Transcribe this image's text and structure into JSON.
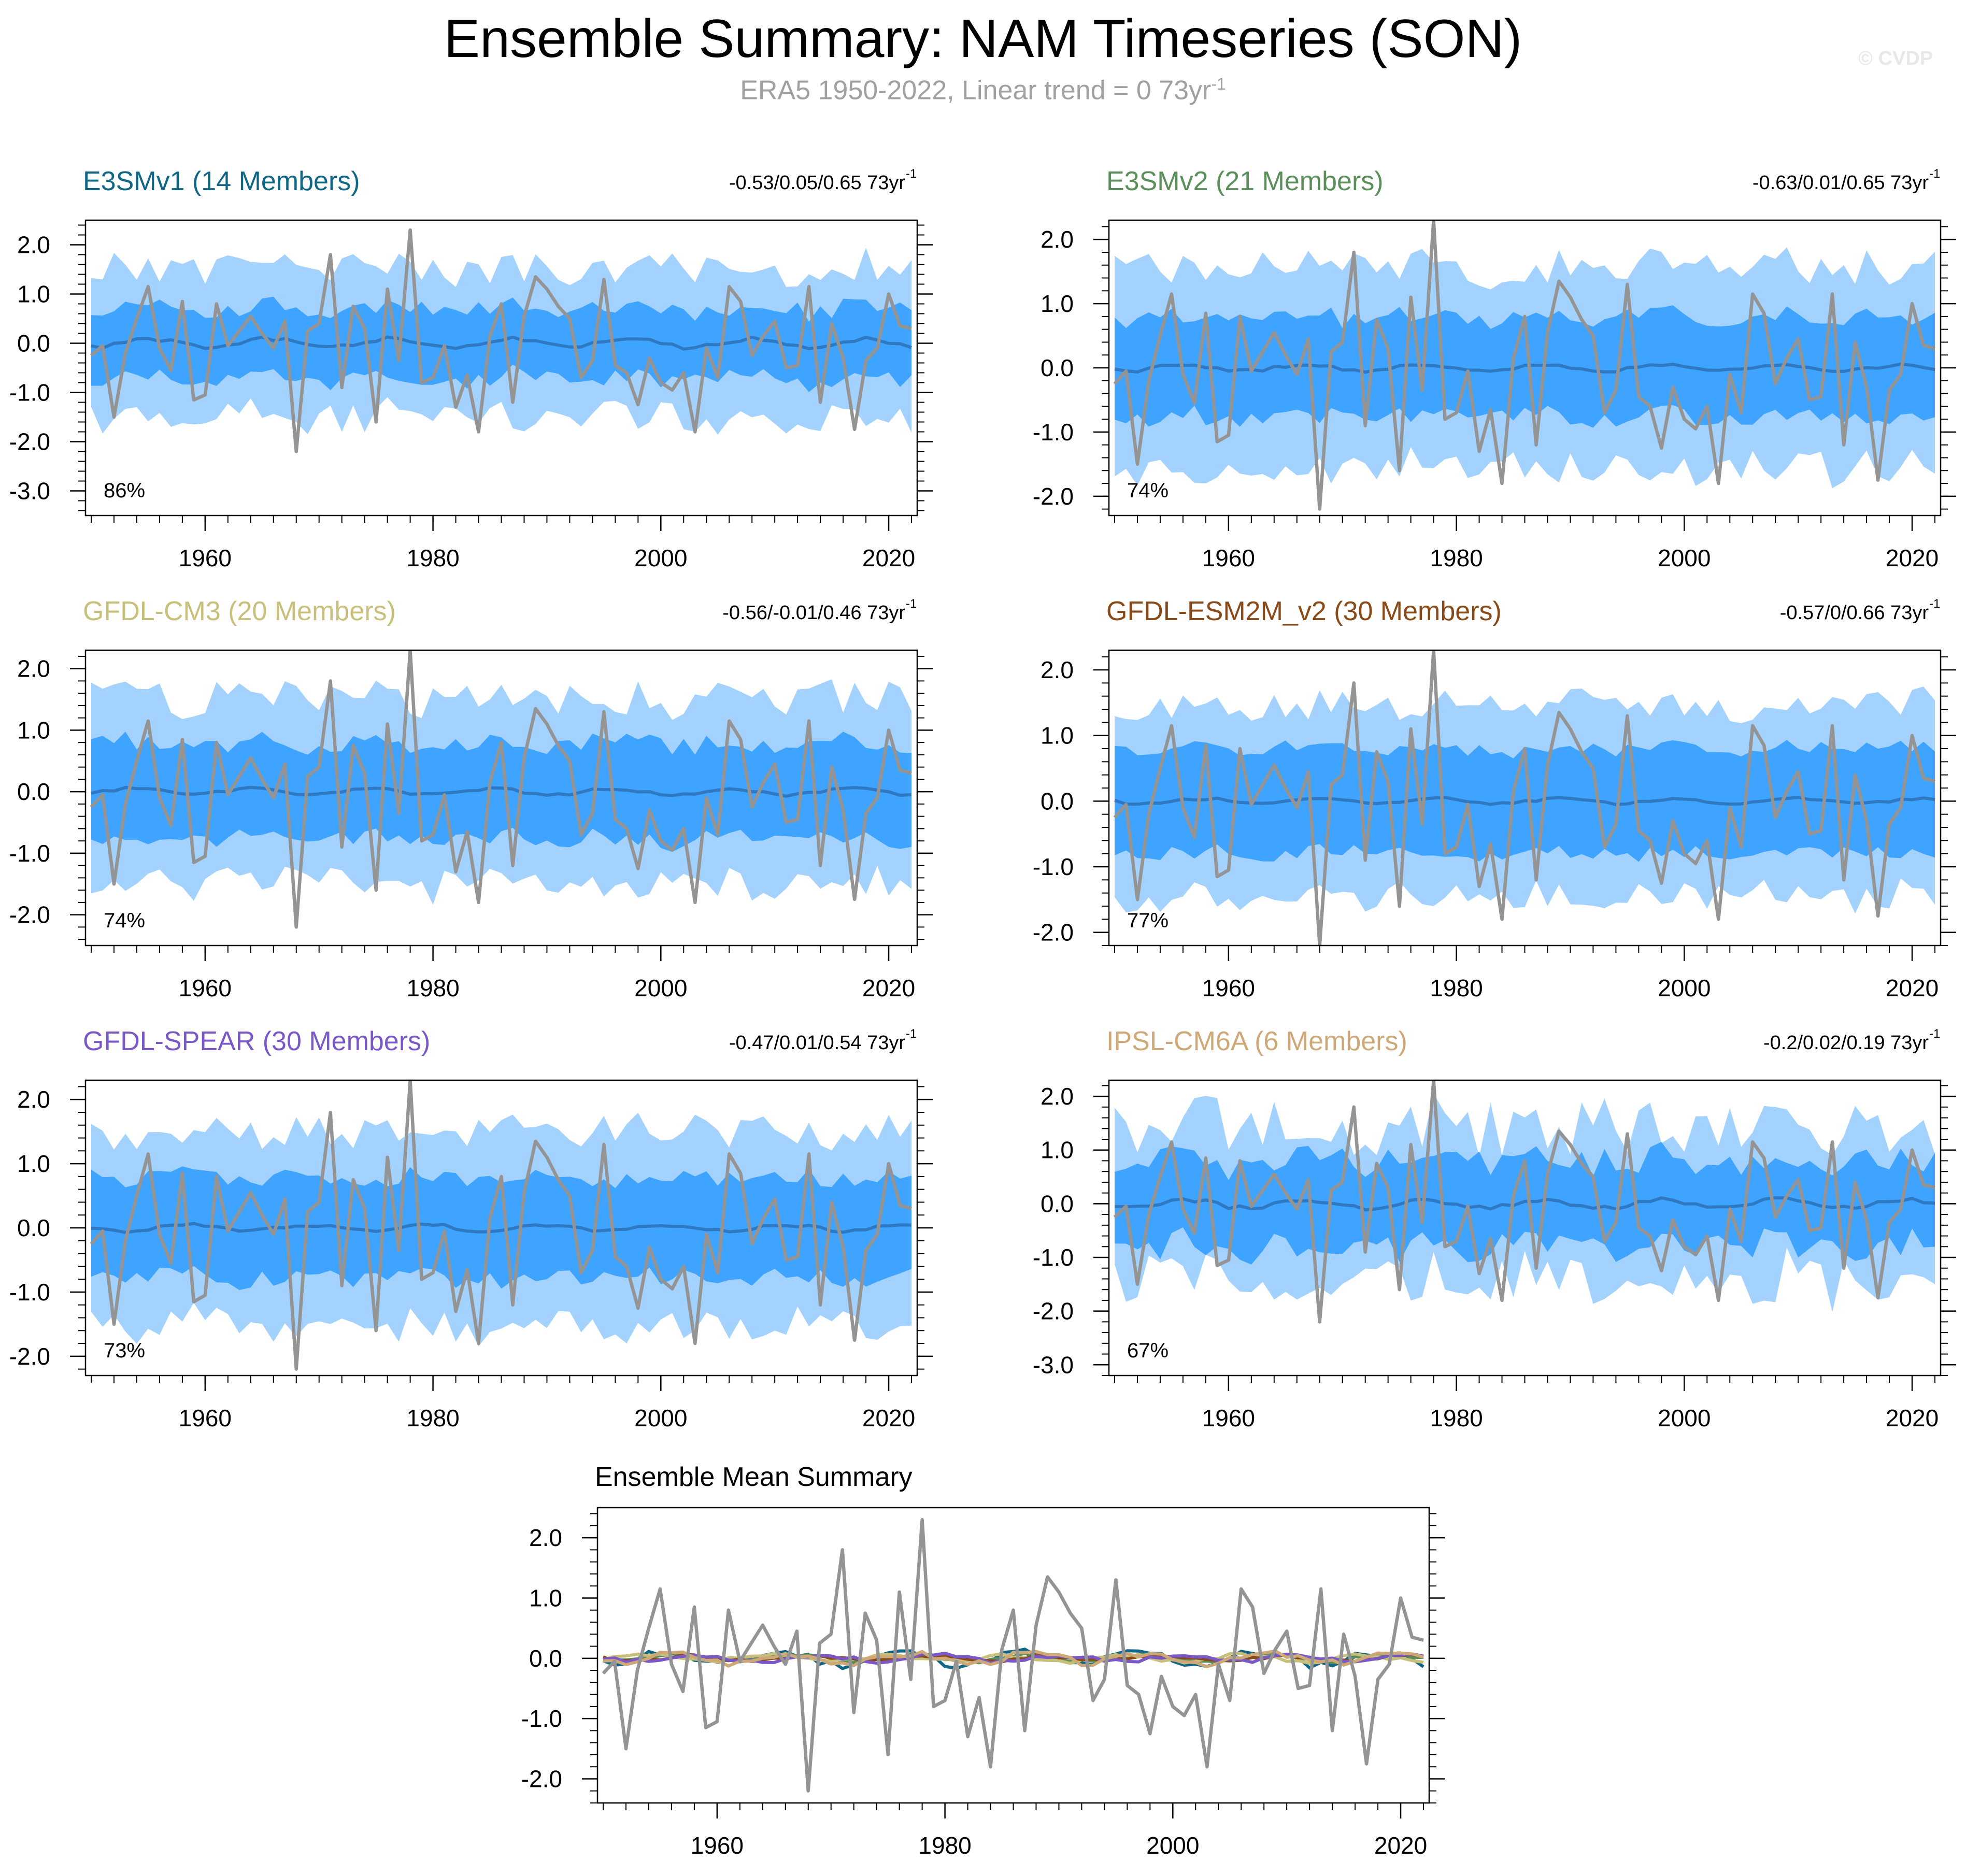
{
  "title": "Ensemble Summary: NAM Timeseries (SON)",
  "subtitle": {
    "text": "ERA5 1950-2022, Linear trend = 0 73yr",
    "sup": "-1"
  },
  "credit": "© CVDP",
  "colors": {
    "outer_band": "#a3d2ff",
    "inner_band": "#3fa4ff",
    "ens_mean_line": "#2f78c2",
    "obs_line": "#949494",
    "axis": "#000000"
  },
  "obs_label": "ERA5",
  "chart_data": [
    {
      "type": "area",
      "panel": "E3SMv1",
      "title": "E3SMv1 (14 Members)",
      "title_color": "#0f6686",
      "trend_text": "-0.53/0.05/0.65 73yr",
      "trend_sup": "-1",
      "pct_label": "86%",
      "ylim": [
        -3.5,
        2.5
      ],
      "yticks": [
        -3.0,
        -2.0,
        -1.0,
        0.0,
        1.0,
        2.0
      ],
      "ytick_labels": [
        "-3.0",
        "-2.0",
        "-1.0",
        "0.0",
        "1.0",
        "2.0"
      ],
      "xlim": [
        1949.5,
        2022.5
      ],
      "xticks": [
        1960,
        1980,
        2000,
        2020
      ],
      "outer_amp": 1.45,
      "inner_amp": 0.72,
      "noise_amp": 0.35,
      "mean_amp": 0.09,
      "seed": 11
    },
    {
      "type": "area",
      "panel": "E3SMv2",
      "title": "E3SMv2 (21 Members)",
      "title_color": "#5a8f5a",
      "trend_text": "-0.63/0.01/0.65 73yr",
      "trend_sup": "-1",
      "pct_label": "74%",
      "ylim": [
        -2.3,
        2.3
      ],
      "yticks": [
        -2.0,
        -1.0,
        0.0,
        1.0,
        2.0
      ],
      "ytick_labels": [
        "-2.0",
        "-1.0",
        "0.0",
        "1.0",
        "2.0"
      ],
      "xlim": [
        1949.5,
        2022.5
      ],
      "xticks": [
        1960,
        1980,
        2000,
        2020
      ],
      "outer_amp": 1.5,
      "inner_amp": 0.78,
      "noise_amp": 0.3,
      "mean_amp": 0.05,
      "seed": 23
    },
    {
      "type": "area",
      "panel": "GFDL-CM3",
      "title": "GFDL-CM3 (20 Members)",
      "title_color": "#c8c07a",
      "trend_text": "-0.56/-0.01/0.46 73yr",
      "trend_sup": "-1",
      "pct_label": "74%",
      "ylim": [
        -2.5,
        2.3
      ],
      "yticks": [
        -2.0,
        -1.0,
        0.0,
        1.0,
        2.0
      ],
      "ytick_labels": [
        "-2.0",
        "-1.0",
        "0.0",
        "1.0",
        "2.0"
      ],
      "xlim": [
        1949.5,
        2022.5
      ],
      "xticks": [
        1960,
        1980,
        2000,
        2020
      ],
      "outer_amp": 1.45,
      "inner_amp": 0.78,
      "noise_amp": 0.3,
      "mean_amp": 0.05,
      "seed": 37
    },
    {
      "type": "area",
      "panel": "GFDL-ESM2M_v2",
      "title": "GFDL-ESM2M_v2 (30 Members)",
      "title_color": "#8a4a18",
      "trend_text": "-0.57/0/0.66 73yr",
      "trend_sup": "-1",
      "pct_label": "77%",
      "ylim": [
        -2.2,
        2.3
      ],
      "yticks": [
        -2.0,
        -1.0,
        0.0,
        1.0,
        2.0
      ],
      "ytick_labels": [
        "-2.0",
        "-1.0",
        "0.0",
        "1.0",
        "2.0"
      ],
      "xlim": [
        1949.5,
        2022.5
      ],
      "xticks": [
        1960,
        1980,
        2000,
        2020
      ],
      "outer_amp": 1.4,
      "inner_amp": 0.8,
      "noise_amp": 0.25,
      "mean_amp": 0.04,
      "seed": 41
    },
    {
      "type": "area",
      "panel": "GFDL-SPEAR",
      "title": "GFDL-SPEAR (30 Members)",
      "title_color": "#7b58c8",
      "trend_text": "-0.47/0.01/0.54 73yr",
      "trend_sup": "-1",
      "pct_label": "73%",
      "ylim": [
        -2.3,
        2.3
      ],
      "yticks": [
        -2.0,
        -1.0,
        0.0,
        1.0,
        2.0
      ],
      "ytick_labels": [
        "-2.0",
        "-1.0",
        "0.0",
        "1.0",
        "2.0"
      ],
      "xlim": [
        1949.5,
        2022.5
      ],
      "xticks": [
        1960,
        1980,
        2000,
        2020
      ],
      "outer_amp": 1.45,
      "inner_amp": 0.78,
      "noise_amp": 0.28,
      "mean_amp": 0.05,
      "seed": 53
    },
    {
      "type": "area",
      "panel": "IPSL-CM6A",
      "title": "IPSL-CM6A (6 Members)",
      "title_color": "#cfa878",
      "trend_text": "-0.2/0.02/0.19 73yr",
      "trend_sup": "-1",
      "pct_label": "67%",
      "ylim": [
        -3.2,
        2.3
      ],
      "yticks": [
        -3.0,
        -2.0,
        -1.0,
        0.0,
        1.0,
        2.0
      ],
      "ytick_labels": [
        "-3.0",
        "-2.0",
        "-1.0",
        "0.0",
        "1.0",
        "2.0"
      ],
      "xlim": [
        1949.5,
        2022.5
      ],
      "xticks": [
        1960,
        1980,
        2000,
        2020
      ],
      "outer_amp": 1.35,
      "inner_amp": 0.8,
      "noise_amp": 0.55,
      "mean_amp": 0.08,
      "seed": 67
    },
    {
      "type": "line",
      "panel": "Ensemble Mean Summary",
      "title": "Ensemble Mean Summary",
      "title_color": "#000000",
      "ylim": [
        -2.4,
        2.5
      ],
      "yticks": [
        -2.0,
        -1.0,
        0.0,
        1.0,
        2.0
      ],
      "ytick_labels": [
        "-2.0",
        "-1.0",
        "0.0",
        "1.0",
        "2.0"
      ],
      "xlim": [
        1949.5,
        2022.5
      ],
      "xticks": [
        1960,
        1980,
        2000,
        2020
      ],
      "series": [
        {
          "name": "E3SMv1",
          "color": "#0f6686",
          "seed": 11,
          "amp": 0.1
        },
        {
          "name": "E3SMv2",
          "color": "#5a8f5a",
          "seed": 23,
          "amp": 0.05
        },
        {
          "name": "GFDL-CM3",
          "color": "#c8c07a",
          "seed": 37,
          "amp": 0.05
        },
        {
          "name": "GFDL-ESM2M_v2",
          "color": "#8a4a18",
          "seed": 41,
          "amp": 0.04
        },
        {
          "name": "GFDL-SPEAR",
          "color": "#7b58c8",
          "seed": 53,
          "amp": 0.05
        },
        {
          "name": "IPSL-CM6A",
          "color": "#cfa878",
          "seed": 67,
          "amp": 0.08
        }
      ]
    }
  ],
  "observations": {
    "name": "ERA5",
    "x_start": 1950,
    "values": [
      -0.25,
      -0.05,
      -1.5,
      -0.2,
      0.5,
      1.15,
      -0.1,
      -0.55,
      0.85,
      -1.15,
      -1.05,
      0.8,
      -0.05,
      0.25,
      0.55,
      0.2,
      -0.1,
      0.45,
      -2.2,
      0.25,
      0.4,
      1.8,
      -0.9,
      0.75,
      0.3,
      -1.6,
      1.1,
      -0.35,
      2.3,
      -0.8,
      -0.7,
      -0.05,
      -1.3,
      -0.65,
      -1.8,
      0.15,
      0.8,
      -1.2,
      0.55,
      1.35,
      1.1,
      0.75,
      0.5,
      -0.7,
      -0.35,
      1.3,
      -0.45,
      -0.6,
      -1.25,
      -0.3,
      -0.8,
      -0.95,
      -0.6,
      -1.8,
      -0.1,
      -0.7,
      1.15,
      0.85,
      -0.25,
      0.15,
      0.45,
      -0.5,
      -0.45,
      1.15,
      -1.2,
      0.4,
      -0.3,
      -1.75,
      -0.35,
      -0.1,
      1.0,
      0.35,
      0.3
    ]
  }
}
